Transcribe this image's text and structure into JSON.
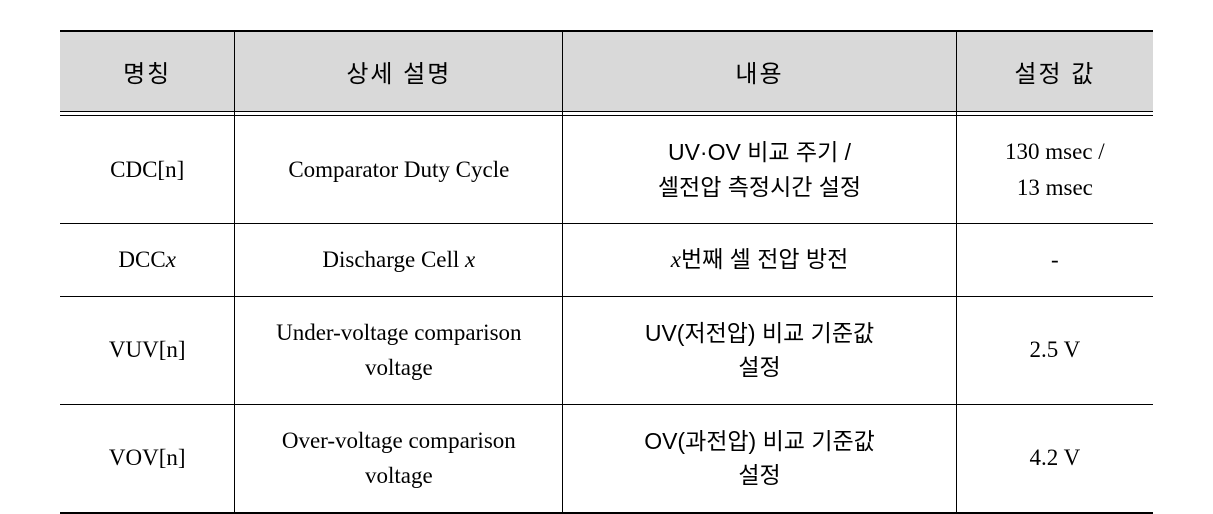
{
  "table": {
    "header_bg": "#d9d9d9",
    "border_color": "#000000",
    "text_color": "#000000",
    "font_size_header": 24,
    "font_size_body": 23,
    "columns": [
      {
        "label": "명칭",
        "width_pct": 16
      },
      {
        "label": "상세 설명",
        "width_pct": 30
      },
      {
        "label": "내용",
        "width_pct": 36
      },
      {
        "label": "설정 값",
        "width_pct": 18
      }
    ],
    "rows": [
      {
        "name": {
          "pre": "CDC[n]"
        },
        "desc": {
          "pre": "Comparator Duty Cycle"
        },
        "content_line1": "UV·OV 비교 주기 /",
        "content_line2": "셀전압 측정시간 설정",
        "value_line1": "130 msec /",
        "value_line2": "13 msec"
      },
      {
        "name": {
          "pre": "DCC",
          "x": "x"
        },
        "desc": {
          "pre": "Discharge Cell ",
          "x": "x"
        },
        "content_pre": "",
        "content_x": "x",
        "content_post": "번째 셀 전압 방전",
        "value": "-"
      },
      {
        "name": {
          "pre": "VUV[n]"
        },
        "desc_line1": "Under-voltage comparison",
        "desc_line2": "voltage",
        "content_line1": "UV(저전압) 비교 기준값",
        "content_line2": "설정",
        "value": "2.5 V"
      },
      {
        "name": {
          "pre": "VOV[n]"
        },
        "desc_line1": "Over-voltage comparison",
        "desc_line2": "voltage",
        "content_line1": "OV(과전압) 비교 기준값",
        "content_line2": "설정",
        "value": "4.2 V"
      }
    ]
  }
}
